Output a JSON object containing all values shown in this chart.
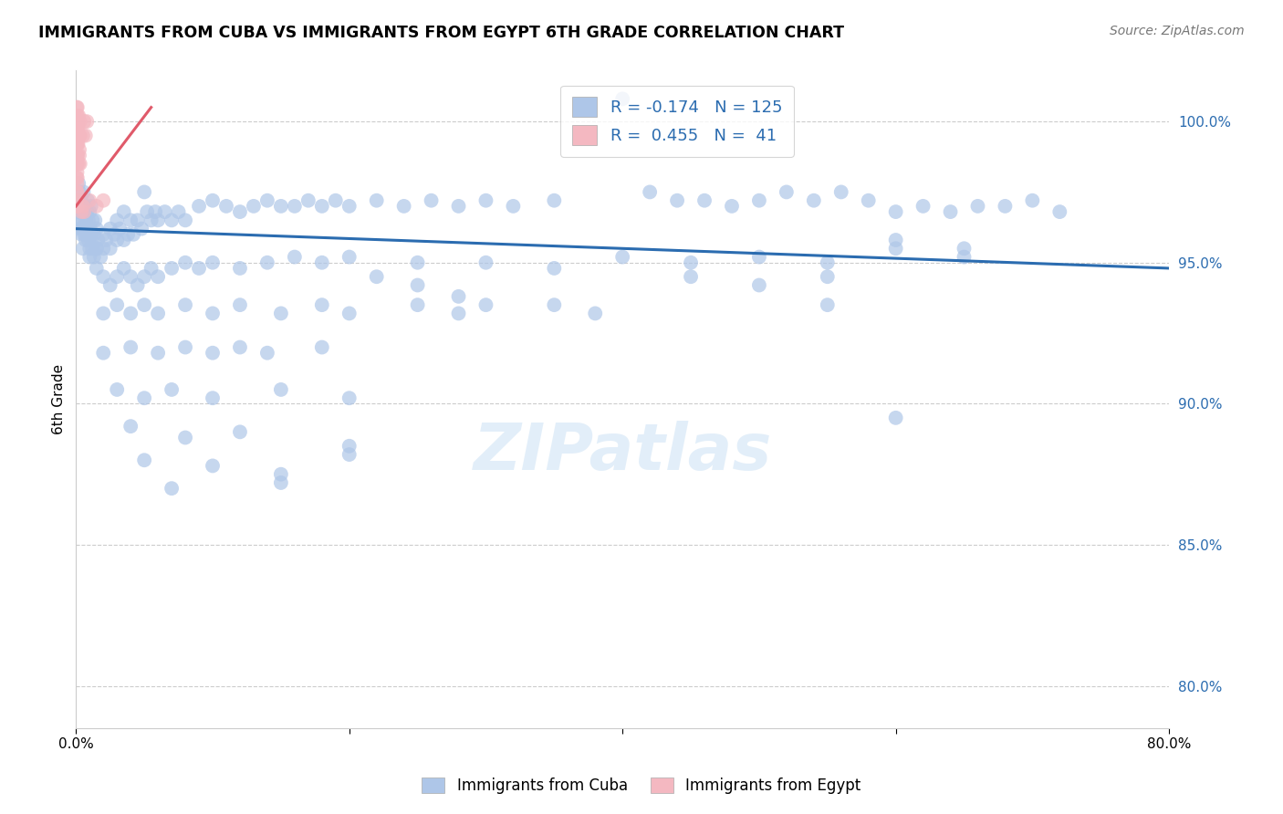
{
  "title": "IMMIGRANTS FROM CUBA VS IMMIGRANTS FROM EGYPT 6TH GRADE CORRELATION CHART",
  "source": "Source: ZipAtlas.com",
  "ylabel": "6th Grade",
  "y_ticks": [
    80.0,
    85.0,
    90.0,
    95.0,
    100.0
  ],
  "x_range": [
    0.0,
    80.0
  ],
  "y_range": [
    78.5,
    101.8
  ],
  "cuba_color": "#aec6e8",
  "egypt_color": "#f4b8c1",
  "cuba_line_color": "#2b6cb0",
  "egypt_line_color": "#e05a6a",
  "cuba_scatter": [
    [
      0.1,
      96.5
    ],
    [
      0.15,
      97.2
    ],
    [
      0.2,
      97.8
    ],
    [
      0.2,
      96.8
    ],
    [
      0.25,
      97.5
    ],
    [
      0.3,
      96.2
    ],
    [
      0.3,
      97.0
    ],
    [
      0.35,
      96.8
    ],
    [
      0.4,
      97.2
    ],
    [
      0.4,
      96.0
    ],
    [
      0.45,
      96.5
    ],
    [
      0.5,
      97.0
    ],
    [
      0.5,
      96.2
    ],
    [
      0.55,
      97.5
    ],
    [
      0.6,
      96.8
    ],
    [
      0.6,
      96.0
    ],
    [
      0.65,
      97.0
    ],
    [
      0.7,
      96.5
    ],
    [
      0.7,
      95.8
    ],
    [
      0.75,
      96.2
    ],
    [
      0.8,
      96.8
    ],
    [
      0.8,
      96.0
    ],
    [
      0.85,
      97.2
    ],
    [
      0.9,
      96.5
    ],
    [
      0.9,
      95.8
    ],
    [
      0.95,
      96.0
    ],
    [
      1.0,
      96.8
    ],
    [
      1.0,
      95.5
    ],
    [
      1.05,
      96.2
    ],
    [
      1.1,
      97.0
    ],
    [
      1.1,
      96.0
    ],
    [
      1.15,
      95.8
    ],
    [
      1.2,
      96.5
    ],
    [
      1.2,
      95.5
    ],
    [
      1.3,
      96.0
    ],
    [
      1.3,
      95.2
    ],
    [
      1.4,
      96.5
    ],
    [
      1.5,
      96.2
    ],
    [
      1.5,
      95.5
    ],
    [
      1.6,
      95.8
    ],
    [
      1.8,
      95.2
    ],
    [
      2.0,
      96.0
    ],
    [
      2.0,
      95.5
    ],
    [
      2.2,
      95.8
    ],
    [
      2.5,
      96.2
    ],
    [
      2.5,
      95.5
    ],
    [
      2.8,
      96.0
    ],
    [
      3.0,
      95.8
    ],
    [
      3.0,
      96.5
    ],
    [
      3.2,
      96.2
    ],
    [
      3.5,
      95.8
    ],
    [
      3.5,
      96.8
    ],
    [
      3.8,
      96.0
    ],
    [
      4.0,
      96.5
    ],
    [
      4.2,
      96.0
    ],
    [
      4.5,
      96.5
    ],
    [
      4.8,
      96.2
    ],
    [
      5.0,
      97.5
    ],
    [
      5.2,
      96.8
    ],
    [
      5.5,
      96.5
    ],
    [
      5.8,
      96.8
    ],
    [
      6.0,
      96.5
    ],
    [
      6.5,
      96.8
    ],
    [
      7.0,
      96.5
    ],
    [
      7.5,
      96.8
    ],
    [
      8.0,
      96.5
    ],
    [
      9.0,
      97.0
    ],
    [
      10.0,
      97.2
    ],
    [
      11.0,
      97.0
    ],
    [
      12.0,
      96.8
    ],
    [
      13.0,
      97.0
    ],
    [
      14.0,
      97.2
    ],
    [
      15.0,
      97.0
    ],
    [
      16.0,
      97.0
    ],
    [
      17.0,
      97.2
    ],
    [
      18.0,
      97.0
    ],
    [
      19.0,
      97.2
    ],
    [
      20.0,
      97.0
    ],
    [
      22.0,
      97.2
    ],
    [
      24.0,
      97.0
    ],
    [
      26.0,
      97.2
    ],
    [
      28.0,
      97.0
    ],
    [
      30.0,
      97.2
    ],
    [
      32.0,
      97.0
    ],
    [
      35.0,
      97.2
    ],
    [
      40.0,
      100.8
    ],
    [
      42.0,
      97.5
    ],
    [
      44.0,
      97.2
    ],
    [
      46.0,
      97.2
    ],
    [
      48.0,
      97.0
    ],
    [
      50.0,
      97.2
    ],
    [
      52.0,
      97.5
    ],
    [
      54.0,
      97.2
    ],
    [
      56.0,
      97.5
    ],
    [
      58.0,
      97.2
    ],
    [
      60.0,
      96.8
    ],
    [
      62.0,
      97.0
    ],
    [
      64.0,
      96.8
    ],
    [
      66.0,
      97.0
    ],
    [
      68.0,
      97.0
    ],
    [
      70.0,
      97.2
    ],
    [
      72.0,
      96.8
    ],
    [
      1.5,
      94.8
    ],
    [
      2.0,
      94.5
    ],
    [
      2.5,
      94.2
    ],
    [
      3.0,
      94.5
    ],
    [
      3.5,
      94.8
    ],
    [
      4.0,
      94.5
    ],
    [
      4.5,
      94.2
    ],
    [
      5.0,
      94.5
    ],
    [
      5.5,
      94.8
    ],
    [
      6.0,
      94.5
    ],
    [
      7.0,
      94.8
    ],
    [
      8.0,
      95.0
    ],
    [
      9.0,
      94.8
    ],
    [
      10.0,
      95.0
    ],
    [
      12.0,
      94.8
    ],
    [
      14.0,
      95.0
    ],
    [
      16.0,
      95.2
    ],
    [
      18.0,
      95.0
    ],
    [
      20.0,
      95.2
    ],
    [
      25.0,
      95.0
    ],
    [
      0.5,
      95.5
    ],
    [
      1.0,
      95.2
    ],
    [
      1.5,
      95.5
    ],
    [
      2.0,
      93.2
    ],
    [
      3.0,
      93.5
    ],
    [
      4.0,
      93.2
    ],
    [
      5.0,
      93.5
    ],
    [
      6.0,
      93.2
    ],
    [
      8.0,
      93.5
    ],
    [
      10.0,
      93.2
    ],
    [
      12.0,
      93.5
    ],
    [
      15.0,
      93.2
    ],
    [
      18.0,
      93.5
    ],
    [
      20.0,
      93.2
    ],
    [
      2.0,
      91.8
    ],
    [
      4.0,
      92.0
    ],
    [
      6.0,
      91.8
    ],
    [
      8.0,
      92.0
    ],
    [
      10.0,
      91.8
    ],
    [
      12.0,
      92.0
    ],
    [
      14.0,
      91.8
    ],
    [
      18.0,
      92.0
    ],
    [
      3.0,
      90.5
    ],
    [
      5.0,
      90.2
    ],
    [
      7.0,
      90.5
    ],
    [
      10.0,
      90.2
    ],
    [
      15.0,
      90.5
    ],
    [
      20.0,
      90.2
    ],
    [
      4.0,
      89.2
    ],
    [
      8.0,
      88.8
    ],
    [
      12.0,
      89.0
    ],
    [
      20.0,
      88.5
    ],
    [
      5.0,
      88.0
    ],
    [
      10.0,
      87.8
    ],
    [
      15.0,
      87.5
    ],
    [
      20.0,
      88.2
    ],
    [
      7.0,
      87.0
    ],
    [
      15.0,
      87.2
    ],
    [
      25.0,
      93.5
    ],
    [
      28.0,
      93.2
    ],
    [
      30.0,
      93.5
    ],
    [
      35.0,
      93.5
    ],
    [
      38.0,
      93.2
    ],
    [
      22.0,
      94.5
    ],
    [
      25.0,
      94.2
    ],
    [
      28.0,
      93.8
    ],
    [
      30.0,
      95.0
    ],
    [
      35.0,
      94.8
    ],
    [
      40.0,
      95.2
    ],
    [
      45.0,
      95.0
    ],
    [
      50.0,
      95.2
    ],
    [
      55.0,
      95.0
    ],
    [
      60.0,
      95.5
    ],
    [
      65.0,
      95.2
    ],
    [
      60.0,
      95.8
    ],
    [
      65.0,
      95.5
    ],
    [
      45.0,
      94.5
    ],
    [
      50.0,
      94.2
    ],
    [
      55.0,
      94.5
    ],
    [
      60.0,
      89.5
    ],
    [
      55.0,
      93.5
    ]
  ],
  "egypt_scatter": [
    [
      0.05,
      100.5
    ],
    [
      0.08,
      100.2
    ],
    [
      0.1,
      100.5
    ],
    [
      0.12,
      100.2
    ],
    [
      0.05,
      99.8
    ],
    [
      0.08,
      100.0
    ],
    [
      0.1,
      99.5
    ],
    [
      0.12,
      100.0
    ],
    [
      0.05,
      99.2
    ],
    [
      0.08,
      99.5
    ],
    [
      0.1,
      99.2
    ],
    [
      0.12,
      99.5
    ],
    [
      0.05,
      98.5
    ],
    [
      0.08,
      98.8
    ],
    [
      0.1,
      98.5
    ],
    [
      0.12,
      98.8
    ],
    [
      0.05,
      98.0
    ],
    [
      0.08,
      98.2
    ],
    [
      0.1,
      98.0
    ],
    [
      0.05,
      97.5
    ],
    [
      0.08,
      97.8
    ],
    [
      0.1,
      97.5
    ],
    [
      0.05,
      97.0
    ],
    [
      0.08,
      97.2
    ],
    [
      0.1,
      97.0
    ],
    [
      0.15,
      99.8
    ],
    [
      0.2,
      100.2
    ],
    [
      0.25,
      99.5
    ],
    [
      0.3,
      100.0
    ],
    [
      0.15,
      99.2
    ],
    [
      0.2,
      99.5
    ],
    [
      0.25,
      99.0
    ],
    [
      0.3,
      99.5
    ],
    [
      0.2,
      98.5
    ],
    [
      0.25,
      98.8
    ],
    [
      0.3,
      98.5
    ],
    [
      0.5,
      99.5
    ],
    [
      0.6,
      100.0
    ],
    [
      0.7,
      99.5
    ],
    [
      0.8,
      100.0
    ],
    [
      1.0,
      97.2
    ],
    [
      1.5,
      97.0
    ],
    [
      2.0,
      97.2
    ],
    [
      0.4,
      96.8
    ],
    [
      0.5,
      97.0
    ],
    [
      0.6,
      96.8
    ]
  ],
  "cuba_trend_x": [
    0,
    80
  ],
  "cuba_trend_y": [
    96.2,
    94.8
  ],
  "egypt_trend_x": [
    0,
    5.5
  ],
  "egypt_trend_y": [
    97.0,
    100.5
  ]
}
